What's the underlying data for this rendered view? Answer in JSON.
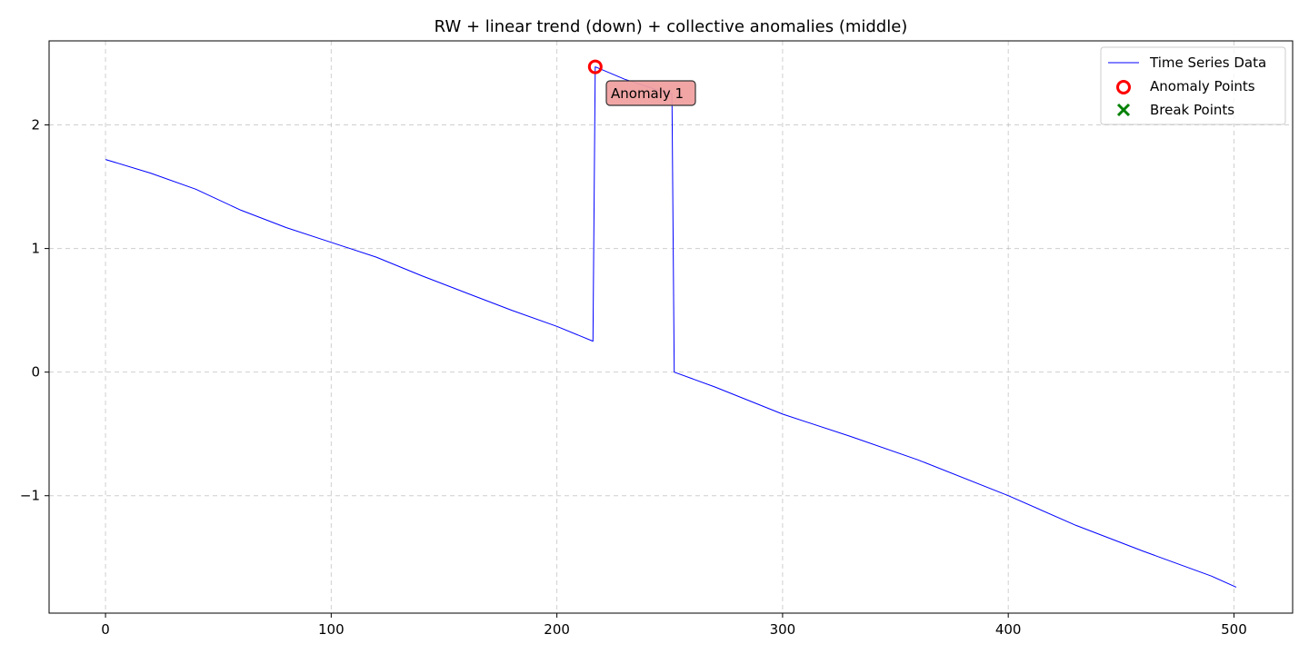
{
  "chart_data": {
    "type": "line",
    "title": "RW + linear trend (down) + collective anomalies (middle)",
    "xlabel": "",
    "ylabel": "",
    "xlim": [
      -25,
      526
    ],
    "ylim": [
      -1.95,
      2.68
    ],
    "xticks": [
      0,
      100,
      200,
      300,
      400,
      500
    ],
    "xtick_labels": [
      "0",
      "100",
      "200",
      "300",
      "400",
      "500"
    ],
    "yticks": [
      -1,
      0,
      1,
      2
    ],
    "ytick_labels": [
      "−1",
      "0",
      "1",
      "2"
    ],
    "grid": true,
    "legend_position": "top-right",
    "series": [
      {
        "name": "Time Series Data",
        "color": "#0000ff",
        "points": [
          [
            0,
            1.72
          ],
          [
            20,
            1.61
          ],
          [
            40,
            1.48
          ],
          [
            60,
            1.31
          ],
          [
            80,
            1.17
          ],
          [
            100,
            1.05
          ],
          [
            120,
            0.93
          ],
          [
            140,
            0.78
          ],
          [
            160,
            0.64
          ],
          [
            180,
            0.5
          ],
          [
            200,
            0.37
          ],
          [
            216,
            0.25
          ],
          [
            217,
            2.47
          ],
          [
            230,
            2.37
          ],
          [
            245,
            2.28
          ],
          [
            251,
            2.25
          ],
          [
            252,
            0.0
          ],
          [
            270,
            -0.12
          ],
          [
            300,
            -0.34
          ],
          [
            330,
            -0.52
          ],
          [
            360,
            -0.71
          ],
          [
            400,
            -1.0
          ],
          [
            430,
            -1.24
          ],
          [
            460,
            -1.45
          ],
          [
            490,
            -1.65
          ],
          [
            501,
            -1.74
          ]
        ]
      }
    ],
    "anomaly_points": {
      "name": "Anomaly Points",
      "color": "#ff0000",
      "points": [
        [
          217,
          2.47
        ]
      ]
    },
    "break_points": {
      "name": "Break Points",
      "color": "#008000",
      "points": []
    },
    "annotations": [
      {
        "text": "Anomaly 1",
        "x": 217,
        "y": 2.47,
        "bg": "#f0a0a0"
      }
    ]
  }
}
